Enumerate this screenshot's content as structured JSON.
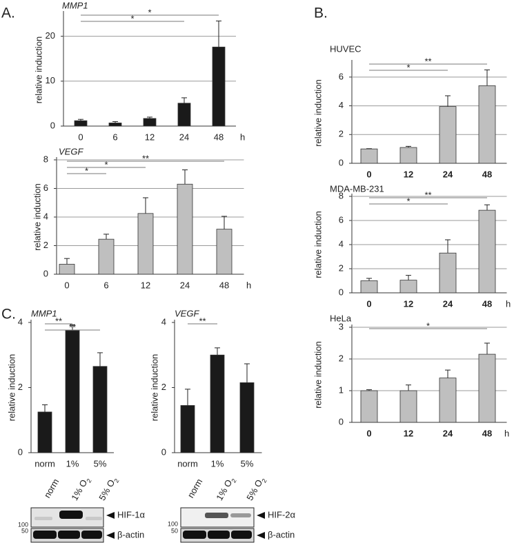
{
  "panel_labels": [
    "A.",
    "B.",
    "C."
  ],
  "chart_data": [
    {
      "type": "bar",
      "title": "MMP1",
      "y_label": "relative induction",
      "x_label": "h",
      "categories": [
        "0",
        "6",
        "12",
        "24",
        "48"
      ],
      "values": [
        1.2,
        0.7,
        1.7,
        5.1,
        17.6
      ],
      "errors": [
        0.3,
        0.3,
        0.3,
        1.2,
        5.8
      ],
      "color": "#1a1a1a",
      "ylim": [
        0,
        25
      ],
      "yticks": [
        0,
        10,
        20
      ],
      "grid": true,
      "significance": [
        {
          "label": "*",
          "start": 0,
          "end": 4
        },
        {
          "label": "*",
          "start": 0,
          "end": 3
        }
      ]
    },
    {
      "type": "bar",
      "title": "VEGF",
      "y_label": "relative induction",
      "x_label": "h",
      "categories": [
        "0",
        "6",
        "12",
        "24",
        "48"
      ],
      "values": [
        0.7,
        2.45,
        4.25,
        6.3,
        3.15
      ],
      "errors": [
        0.4,
        0.35,
        1.1,
        1.0,
        0.9
      ],
      "color": "#bfbfbf",
      "ylim": [
        0,
        8
      ],
      "yticks": [
        0,
        2,
        4,
        6,
        8
      ],
      "grid": true,
      "significance": [
        {
          "label": "**",
          "start": 0,
          "end": 4
        },
        {
          "label": "*",
          "start": 0,
          "end": 2
        },
        {
          "label": "*",
          "start": 0,
          "end": 1
        }
      ]
    },
    {
      "type": "bar",
      "title": "HUVEC",
      "y_label": "relative induction",
      "categories": [
        "0",
        "12",
        "24",
        "48"
      ],
      "values": [
        1.0,
        1.1,
        3.95,
        5.4
      ],
      "errors": [
        0.02,
        0.08,
        0.75,
        1.1
      ],
      "color": "#bfbfbf",
      "ylim": [
        0,
        7
      ],
      "yticks": [
        0,
        2,
        4,
        6
      ],
      "grid": true,
      "significance": [
        {
          "label": "**",
          "start": 0,
          "end": 3
        },
        {
          "label": "*",
          "start": 0,
          "end": 2
        }
      ]
    },
    {
      "type": "bar",
      "title": "MDA-MB-231",
      "y_label": "relative induction",
      "x_label": "h",
      "categories": [
        "0",
        "12",
        "24",
        "48"
      ],
      "values": [
        1.0,
        1.05,
        3.3,
        6.85
      ],
      "errors": [
        0.2,
        0.4,
        1.1,
        0.45
      ],
      "color": "#bfbfbf",
      "ylim": [
        0,
        8
      ],
      "yticks": [
        0,
        2,
        4,
        6,
        8
      ],
      "grid": true,
      "significance": [
        {
          "label": "**",
          "start": 0,
          "end": 3
        },
        {
          "label": "*",
          "start": 0,
          "end": 2
        }
      ]
    },
    {
      "type": "bar",
      "title": "HeLa",
      "y_label": "relative induction",
      "x_label": "h",
      "categories": [
        "0",
        "12",
        "24",
        "48"
      ],
      "values": [
        1.0,
        1.0,
        1.4,
        2.15
      ],
      "errors": [
        0.03,
        0.18,
        0.25,
        0.35
      ],
      "color": "#bfbfbf",
      "ylim": [
        0,
        3
      ],
      "yticks": [
        0,
        1,
        2,
        3
      ],
      "grid": true,
      "significance": [
        {
          "label": "*",
          "start": 0,
          "end": 3
        }
      ]
    },
    {
      "type": "bar",
      "title": "MMP1",
      "y_label": "relative induction",
      "categories": [
        "norm",
        "1%",
        "5%"
      ],
      "values": [
        1.25,
        3.75,
        2.65
      ],
      "errors": [
        0.22,
        0.18,
        0.42
      ],
      "color": "#1a1a1a",
      "ylim": [
        0,
        4
      ],
      "yticks": [
        0,
        2,
        4
      ],
      "grid": false,
      "significance": [
        {
          "label": "**",
          "start": 0,
          "end": 1
        },
        {
          "label": "**",
          "start": 0,
          "end": 2
        }
      ]
    },
    {
      "type": "bar",
      "title": "VEGF",
      "y_label": "relative induction",
      "categories": [
        "norm",
        "1%",
        "5%"
      ],
      "values": [
        1.45,
        3.0,
        2.15
      ],
      "errors": [
        0.5,
        0.22,
        0.58
      ],
      "color": "#1a1a1a",
      "ylim": [
        0,
        4
      ],
      "yticks": [
        0,
        2,
        4
      ],
      "grid": false,
      "significance": [
        {
          "label": "**",
          "start": 0,
          "end": 1
        }
      ]
    }
  ],
  "blots": [
    {
      "lanes": [
        "norm",
        {
          "text": "1% O",
          "sub": "2"
        },
        {
          "text": "5% O",
          "sub": "2"
        }
      ],
      "rows": [
        {
          "label": "HIF-1α",
          "marker": "100"
        },
        {
          "label": "β-actin",
          "marker": "50"
        }
      ]
    },
    {
      "lanes": [
        "norm",
        {
          "text": "1% O",
          "sub": "2"
        },
        {
          "text": "5% O",
          "sub": "2"
        }
      ],
      "rows": [
        {
          "label": "HIF-2α",
          "marker": "100"
        },
        {
          "label": "β-actin",
          "marker": "50"
        }
      ]
    }
  ]
}
